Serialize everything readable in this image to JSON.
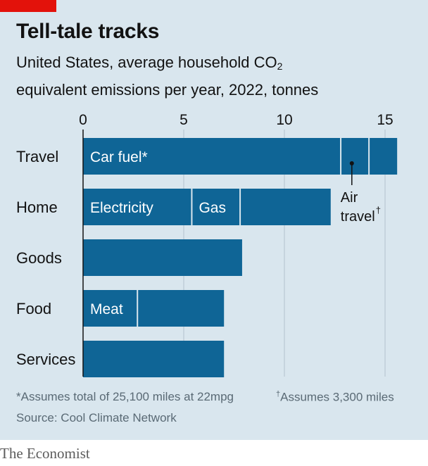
{
  "title": "Tell-tale tracks",
  "subtitle_line1": "United States, average household CO",
  "subtitle_subscript": "2",
  "subtitle_line2": "equivalent emissions per year, 2022, tonnes",
  "footnote_car": "*Assumes total of 25,100 miles at 22mpg",
  "footnote_air_mark": "†",
  "footnote_air": "Assumes 3,300 miles",
  "source": "Source: Cool Climate Network",
  "brand": "The Economist",
  "colors": {
    "background": "#d9e6ee",
    "bar": "#0f6596",
    "accent_red": "#e3120b",
    "grid": "#b4c3cd",
    "text": "#121212",
    "footnote": "#5a6a75"
  },
  "chart_data": {
    "type": "bar",
    "orientation": "horizontal",
    "stacked": true,
    "categories": [
      "Travel",
      "Home",
      "Goods",
      "Food",
      "Services"
    ],
    "xlim": [
      0,
      16
    ],
    "xticks": [
      0,
      5,
      10,
      15
    ],
    "grid": true,
    "rows": [
      {
        "category": "Travel",
        "segments": [
          {
            "label": "Car fuel*",
            "value": 12.8
          },
          {
            "label": "",
            "value": 1.4
          },
          {
            "label": "",
            "value": 1.4
          }
        ]
      },
      {
        "category": "Home",
        "segments": [
          {
            "label": "Electricity",
            "value": 5.4
          },
          {
            "label": "Gas",
            "value": 2.4
          },
          {
            "label": "",
            "value": 4.5
          }
        ]
      },
      {
        "category": "Goods",
        "segments": [
          {
            "label": "",
            "value": 7.9
          }
        ]
      },
      {
        "category": "Food",
        "segments": [
          {
            "label": "Meat",
            "value": 2.7
          },
          {
            "label": "",
            "value": 4.3
          }
        ]
      },
      {
        "category": "Services",
        "segments": [
          {
            "label": "",
            "value": 7.0
          }
        ]
      }
    ],
    "annotation": {
      "line1": "Air",
      "line2": "travel",
      "mark": "†",
      "row": "Travel",
      "points_to_value": 13.5
    }
  }
}
